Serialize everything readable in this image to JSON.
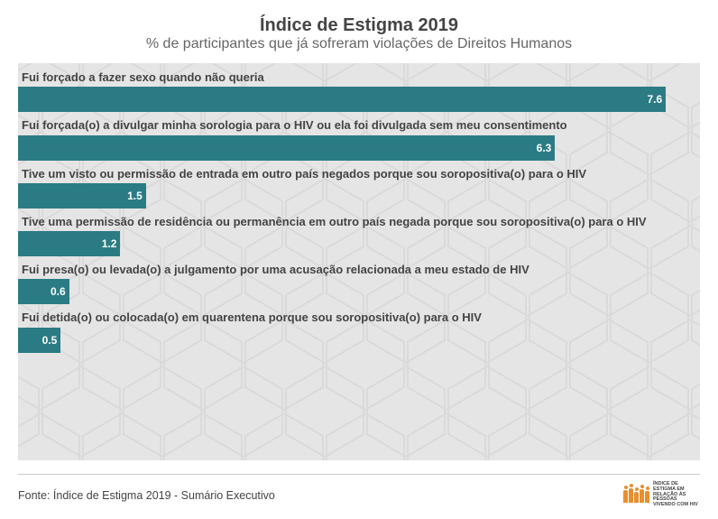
{
  "title": "Índice de Estigma 2019",
  "subtitle": "% de participantes que já sofreram violações de Direitos Humanos",
  "source": "Fonte: Índice de Estigma 2019 - Sumário Executivo",
  "logo_text": "Índice de Estigma em Relação às Pessoas Vivendo com HIV",
  "chart": {
    "type": "bar-horizontal",
    "background_color": "#e5e5e5",
    "hex_pattern_color": "#d2d2d2",
    "bar_color": "#2b7b84",
    "label_color": "#444444",
    "value_color": "#ffffff",
    "label_fontsize": 13,
    "value_fontsize": 12,
    "x_max": 8.0,
    "bars": [
      {
        "label": "Fui forçado a fazer sexo quando não queria",
        "value": 7.6
      },
      {
        "label": "Fui forçada(o) a divulgar minha sorologia para o HIV ou ela foi divulgada sem meu consentimento",
        "value": 6.3
      },
      {
        "label": "Tive um visto ou permissão de entrada em outro país negados porque sou soropositiva(o) para o HIV",
        "value": 1.5
      },
      {
        "label": "Tive uma permissão de residência ou permanência em outro país negada porque sou soropositiva(o) para o HIV",
        "value": 1.2
      },
      {
        "label": "Fui presa(o) ou levada(o) a julgamento por uma acusação relacionada a meu estado de HIV",
        "value": 0.6
      },
      {
        "label": "Fui detida(o) ou colocada(o) em quarentena porque sou soropositiva(o) para o HIV",
        "value": 0.5
      }
    ]
  }
}
